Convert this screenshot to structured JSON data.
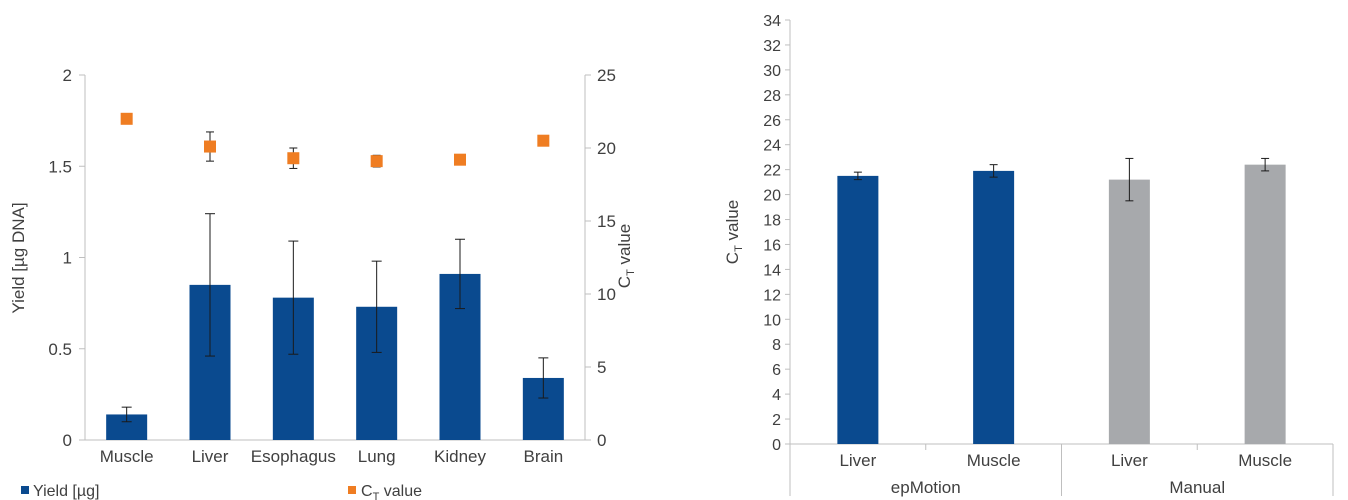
{
  "chart_data": [
    {
      "type": "bar",
      "categories": [
        "Muscle",
        "Liver",
        "Esophagus",
        "Lung",
        "Kidney",
        "Brain"
      ],
      "ylabel": "Yield [µg DNA]",
      "y2label_main": "C",
      "y2label_sub": "T",
      "y2label_rest": " value",
      "ylim": [
        0,
        2
      ],
      "yticks": [
        "0",
        "0.5",
        "1",
        "1.5",
        "2"
      ],
      "y2lim": [
        0,
        25
      ],
      "y2ticks": [
        "0",
        "5",
        "10",
        "15",
        "20",
        "25"
      ],
      "legend_position": "bottom",
      "series": [
        {
          "name": "Yield [µg]",
          "axis": "left",
          "mark": "bar",
          "color": "#0a4a8f",
          "values": [
            0.14,
            0.85,
            0.78,
            0.73,
            0.91,
            0.34
          ],
          "error": [
            0.04,
            0.39,
            0.31,
            0.25,
            0.19,
            0.11
          ]
        },
        {
          "name_main": "C",
          "name_sub": "T",
          "name_rest": " value",
          "axis": "right",
          "mark": "square",
          "color": "#ef7d22",
          "values": [
            22.0,
            20.1,
            19.3,
            19.1,
            19.2,
            20.5
          ],
          "error": [
            0.3,
            1.0,
            0.7,
            0.4,
            0.1,
            0.3
          ]
        }
      ]
    },
    {
      "type": "bar",
      "categories": [
        "Liver",
        "Muscle",
        "Liver",
        "Muscle"
      ],
      "groups": [
        "epMotion",
        "Manual"
      ],
      "group_of_category": [
        0,
        0,
        1,
        1
      ],
      "ylabel_main": "C",
      "ylabel_sub": "T",
      "ylabel_rest": " value",
      "ylim": [
        0,
        34
      ],
      "yticks": [
        "0",
        "2",
        "4",
        "6",
        "8",
        "10",
        "12",
        "14",
        "16",
        "18",
        "20",
        "22",
        "24",
        "26",
        "28",
        "30",
        "32",
        "34"
      ],
      "values": [
        21.5,
        21.9,
        21.2,
        22.4
      ],
      "error": [
        0.3,
        0.5,
        1.7,
        0.5
      ],
      "colors": [
        "#0a4a8f",
        "#0a4a8f",
        "#a7a9ac",
        "#a7a9ac"
      ]
    }
  ]
}
